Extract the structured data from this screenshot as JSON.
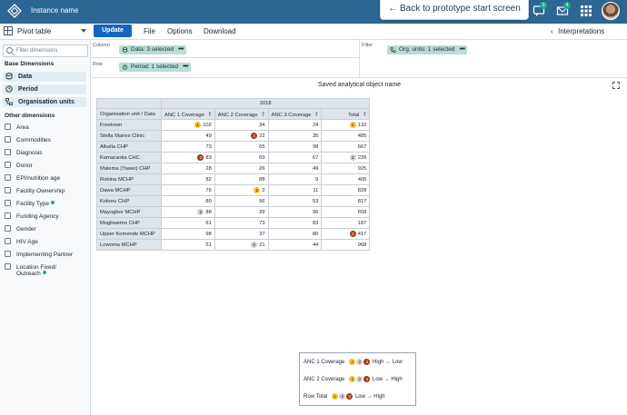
{
  "header": {
    "instance_name": "Instance name",
    "back_button": "← Back to prototype start screen",
    "messages_badge": "3",
    "email_badge": "4"
  },
  "toolbar": {
    "vis_type": "Pivot table",
    "update": "Update",
    "menus": [
      "File",
      "Options",
      "Download"
    ],
    "interpretations": "Interpretations"
  },
  "sidebar": {
    "search_placeholder": "Filter dimensions",
    "base_title": "Base Dimensions",
    "base_items": [
      "Data",
      "Period",
      "Organisation units"
    ],
    "other_title": "Other dimensions",
    "other_items": [
      "Area",
      "Commodities",
      "Diagnosis",
      "Donor",
      "EPI/nutrition age",
      "Facility Ownership",
      "Facility Type",
      "Funding Agency",
      "Gender",
      "HIV Age",
      "Implementing Partner",
      "Location Fixed/",
      "Outreach"
    ]
  },
  "layout": {
    "column_label": "Column",
    "row_label": "Row",
    "filter_label": "Filter",
    "column_chip": "Data: 3 selected",
    "row_chip": "Period: 1 selected",
    "filter_chip": "Org. units: 1 selected"
  },
  "visualization": {
    "title": "Saved analytical object name",
    "year": "2018",
    "corner": "Organisation unit / Data",
    "columns": [
      "ANC 1 Coverage",
      "ANC 2 Coverage",
      "ANC 3 Coverage",
      "Total"
    ],
    "rows": [
      {
        "name": "Freetown",
        "values": [
          "102",
          "34",
          "24",
          "132"
        ],
        "ranks": [
          "1",
          "",
          "",
          "1"
        ]
      },
      {
        "name": "Stella Maries Clinic",
        "values": [
          "49",
          "22",
          "35",
          "485"
        ],
        "ranks": [
          "",
          "3",
          "",
          ""
        ]
      },
      {
        "name": "Alkalia CHP",
        "values": [
          "73",
          "65",
          "98",
          "667"
        ],
        "ranks": [
          "",
          "",
          "",
          ""
        ]
      },
      {
        "name": "Kamaranka CHC",
        "values": [
          "83",
          "69",
          "67",
          "239"
        ],
        "ranks": [
          "3",
          "",
          "",
          "2"
        ]
      },
      {
        "name": "Malema (Yawei) CHP",
        "values": [
          "28",
          "26",
          "49",
          "925"
        ],
        "ranks": [
          "",
          "",
          "",
          ""
        ]
      },
      {
        "name": "Robina MCHP",
        "values": [
          "82",
          "88",
          "9",
          "405"
        ],
        "ranks": [
          "",
          "",
          "",
          ""
        ]
      },
      {
        "name": "Dawa MCHP",
        "values": [
          "76",
          "2",
          "11",
          "828"
        ],
        "ranks": [
          "",
          "1",
          "",
          ""
        ]
      },
      {
        "name": "Kokoru CHP",
        "values": [
          "80",
          "96",
          "53",
          "817"
        ],
        "ranks": [
          "",
          "",
          "",
          ""
        ]
      },
      {
        "name": "Mayogbor MCHP",
        "values": [
          "88",
          "39",
          "96",
          "658"
        ],
        "ranks": [
          "2",
          "",
          "",
          ""
        ]
      },
      {
        "name": "Mogbwemo CHP",
        "values": [
          "61",
          "73",
          "83",
          "187"
        ],
        "ranks": [
          "",
          "",
          "",
          ""
        ]
      },
      {
        "name": "Upper Komende MCHP",
        "values": [
          "98",
          "37",
          "80",
          "417"
        ],
        "ranks": [
          "",
          "",
          "",
          "3"
        ]
      },
      {
        "name": "Lowoma MCHP",
        "values": [
          "51",
          "21",
          "44",
          "968"
        ],
        "ranks": [
          "",
          "2",
          "",
          ""
        ]
      }
    ]
  },
  "legend": {
    "rows": [
      {
        "label": "ANC 1 Coverage",
        "text": "High → Low"
      },
      {
        "label": "ANC 2 Coverage",
        "text": "Low → High"
      },
      {
        "label": "Row Total",
        "text": "Low → High"
      }
    ],
    "ranks": [
      "1",
      "2",
      "3"
    ]
  },
  "colors": {
    "header": "#2c6693",
    "rank1": "#f5c02a",
    "rank2": "#cfcfcf",
    "rank3": "#a33b0e",
    "chip": "#b7ddd4",
    "accent": "#1565c0"
  }
}
